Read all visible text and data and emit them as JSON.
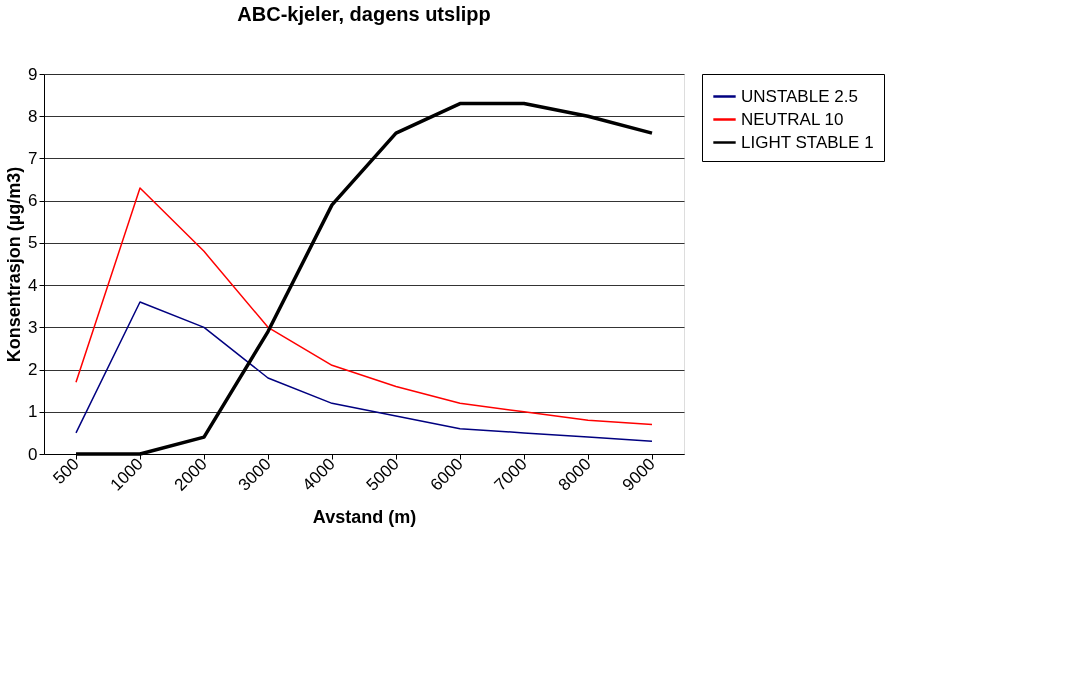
{
  "chart_data": {
    "type": "line",
    "title": "ABC-kjeler, dagens utslipp",
    "xlabel": "Avstand (m)",
    "ylabel": "Konsentrasjon (µg/m3)",
    "categories": [
      "500",
      "1000",
      "2000",
      "3000",
      "4000",
      "5000",
      "6000",
      "7000",
      "8000",
      "9000"
    ],
    "series": [
      {
        "name": "UNSTABLE 2.5",
        "color": "#000080",
        "values": [
          0.5,
          3.6,
          3.0,
          1.8,
          1.2,
          0.9,
          0.6,
          0.5,
          0.4,
          0.3
        ]
      },
      {
        "name": "NEUTRAL 10",
        "color": "#ff0000",
        "values": [
          1.7,
          6.3,
          4.8,
          3.0,
          2.1,
          1.6,
          1.2,
          1.0,
          0.8,
          0.7
        ]
      },
      {
        "name": "LIGHT STABLE 1",
        "color": "#000000",
        "values": [
          0,
          0,
          0.4,
          2.9,
          5.9,
          7.6,
          8.3,
          8.3,
          8.0,
          7.6
        ]
      }
    ],
    "ylim": [
      0,
      9
    ],
    "yticks": [
      0,
      1,
      2,
      3,
      4,
      5,
      6,
      7,
      8,
      9
    ],
    "grid": "y",
    "legend": "right",
    "marker": "none",
    "line_style": "solid"
  }
}
